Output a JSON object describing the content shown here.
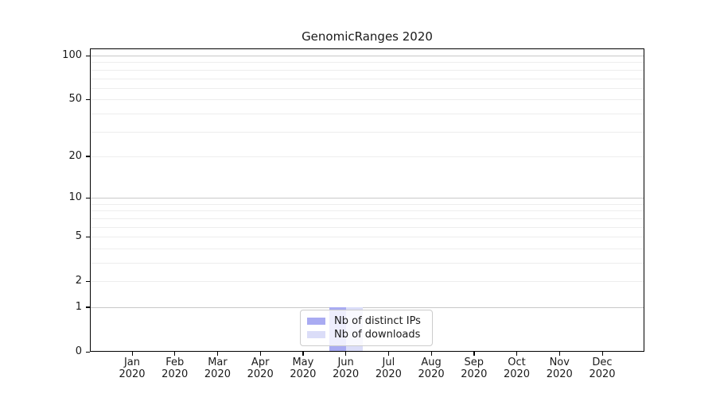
{
  "chart_data": {
    "type": "bar",
    "title": "GenomicRanges 2020",
    "categories": [
      "Jan",
      "Feb",
      "Mar",
      "Apr",
      "May",
      "Jun",
      "Jul",
      "Aug",
      "Sep",
      "Oct",
      "Nov",
      "Dec"
    ],
    "category_year": "2020",
    "series": [
      {
        "name": "Nb of distinct IPs",
        "color": "#a9abf2",
        "values": [
          0,
          0,
          0,
          0,
          0,
          1,
          0,
          0,
          0,
          0,
          0,
          0
        ]
      },
      {
        "name": "Nb of downloads",
        "color": "#dbddf8",
        "values": [
          0,
          0,
          0,
          0,
          0,
          1,
          0,
          0,
          0,
          0,
          0,
          0
        ]
      }
    ],
    "xlabel": "",
    "ylabel": "",
    "y_scale": "log1p",
    "ylim": [
      0,
      112
    ],
    "y_ticks": [
      0,
      1,
      2,
      5,
      10,
      20,
      50,
      100
    ],
    "y_major_gridlines": [
      1,
      10,
      100
    ],
    "y_minor_gridlines": [
      2,
      3,
      4,
      5,
      6,
      7,
      8,
      9,
      20,
      30,
      40,
      50,
      60,
      70,
      80,
      90
    ],
    "grid": true,
    "legend_position": "lower center"
  },
  "legend": {
    "items": [
      {
        "label": "Nb of distinct IPs",
        "color": "#a9abf2"
      },
      {
        "label": "Nb of downloads",
        "color": "#dbddf8"
      }
    ]
  },
  "colors": {
    "axis": "#000000",
    "major_grid": "#c8c8c8",
    "minor_grid": "#ededed",
    "legend_border": "#cccccc",
    "text": "#1a1a1a"
  }
}
